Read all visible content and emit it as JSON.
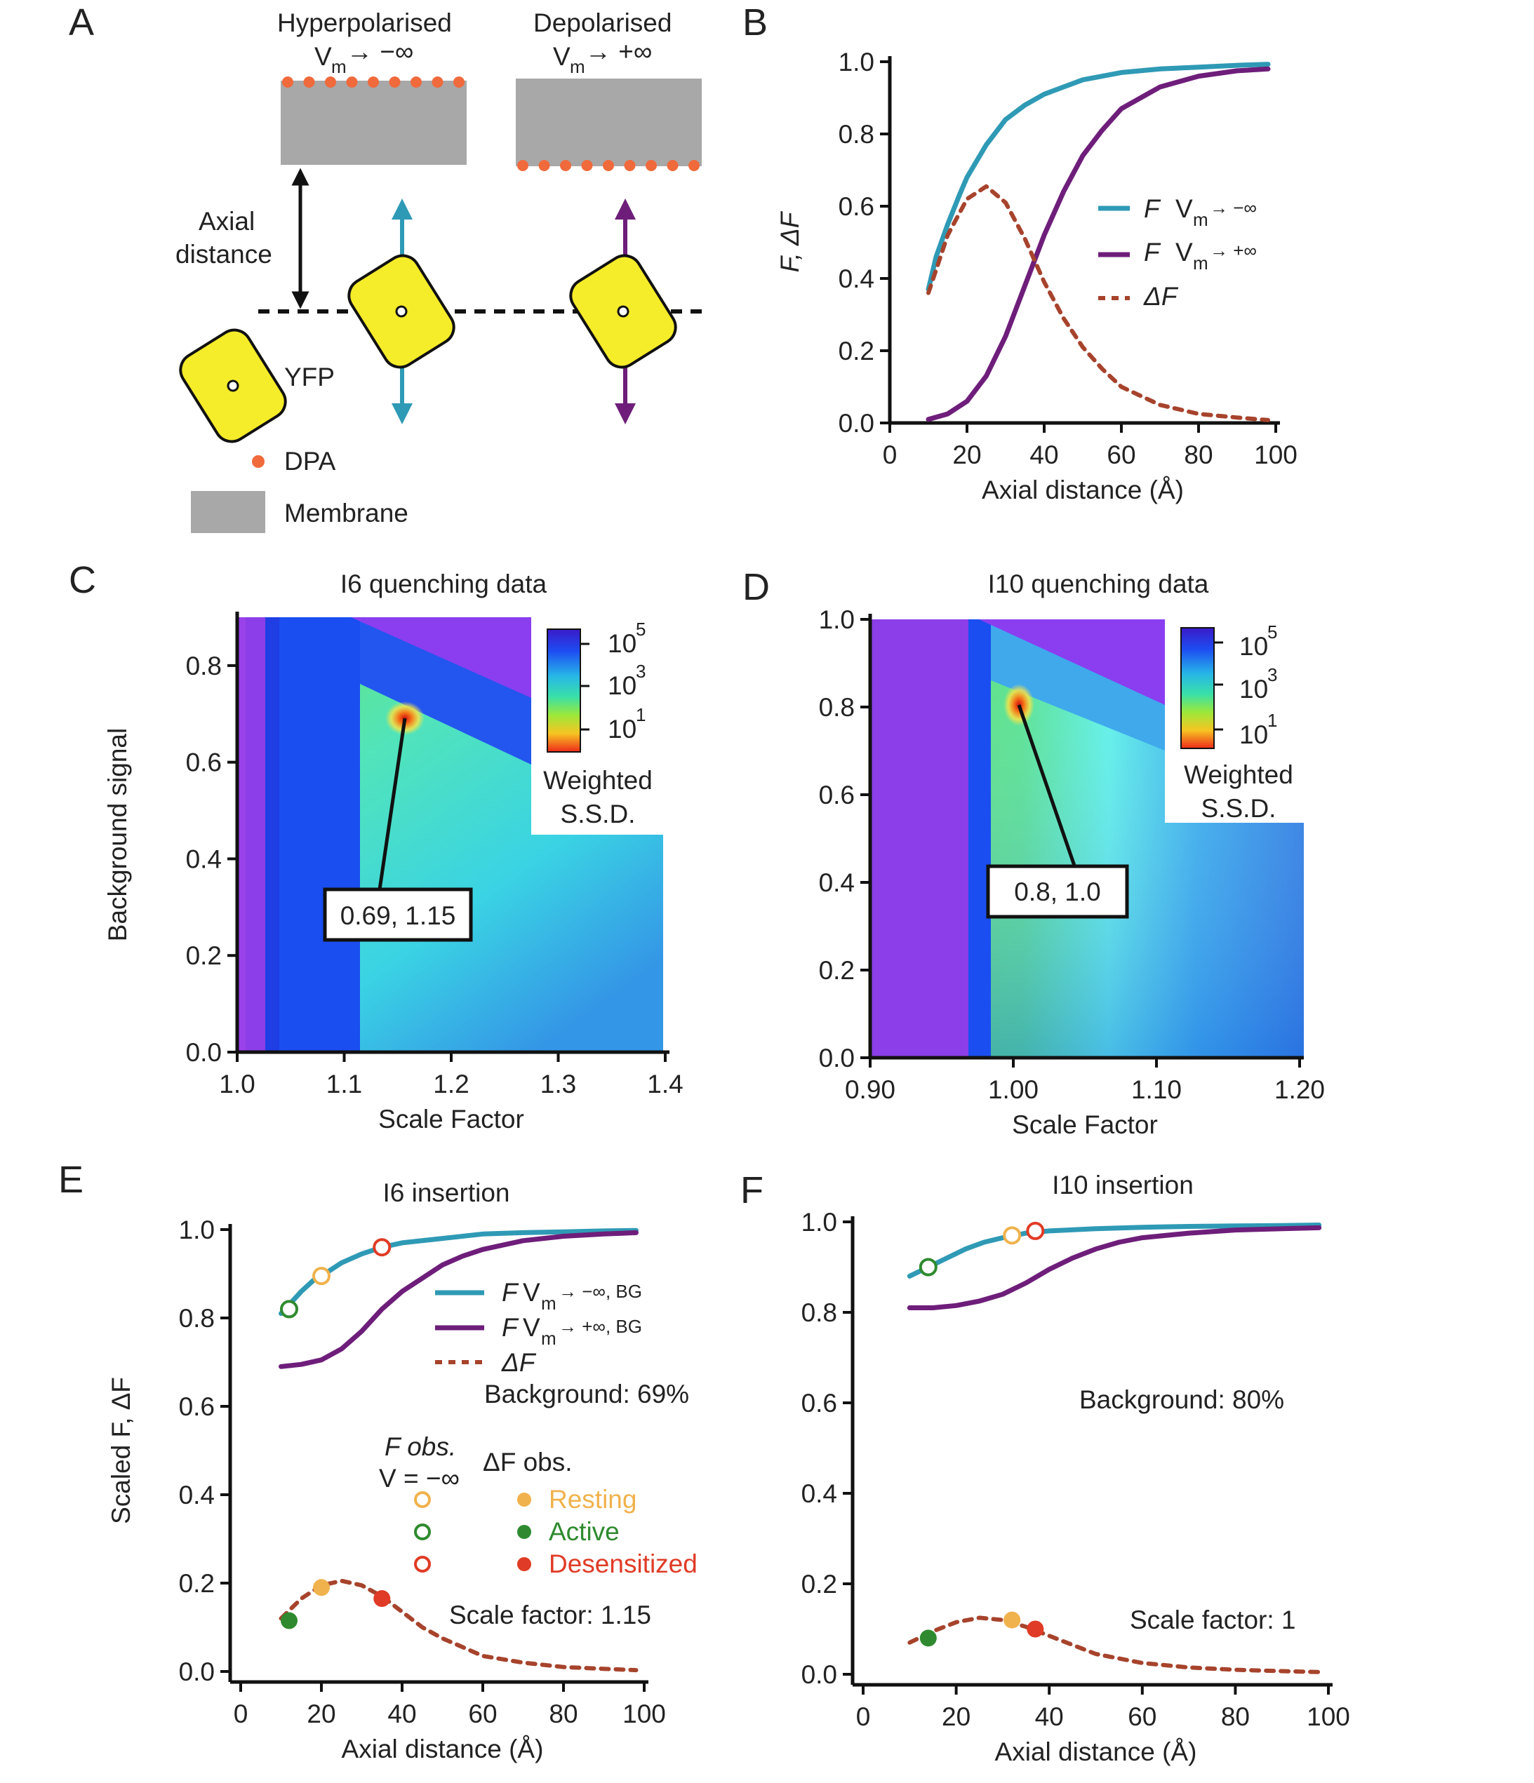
{
  "panels": {
    "A": "A",
    "B": "B",
    "C": "C",
    "D": "D",
    "E": "E",
    "F": "F"
  },
  "colors": {
    "teal": "#2f9ab5",
    "purple": "#6e1e7a",
    "dashed": "#a7432c",
    "resting": "#f0b24c",
    "active": "#2f8a2f",
    "desens": "#e03b26",
    "dpa": "#f06a3c",
    "membrane": "#a8a8a8",
    "yfp": "#f5ec2a"
  },
  "schematic": {
    "hyper_title": "Hyperpolarised",
    "hyper_vm_main": "V",
    "hyper_vm_sub": "m",
    "hyper_vm_tail": "→ −∞",
    "depol_title": "Depolarised",
    "depol_vm_main": "V",
    "depol_vm_sub": "m",
    "depol_vm_tail": "→ +∞",
    "axial_line1": "Axial",
    "axial_line2": "distance",
    "yfp_label": "YFP",
    "dpa_label": "DPA",
    "membrane_label": "Membrane"
  },
  "chart_data": [
    {
      "id": "B",
      "type": "line",
      "title": "",
      "xlabel": "Axial distance (Å)",
      "ylabel": "F, ΔF",
      "xlim": [
        0,
        100
      ],
      "ylim": [
        0,
        1.0
      ],
      "xticks": [
        "0",
        "20",
        "40",
        "60",
        "80",
        "100"
      ],
      "yticks": [
        "0.0",
        "0.2",
        "0.4",
        "0.6",
        "0.8",
        "1.0"
      ],
      "legend": {
        "teal_main": "F",
        "teal_vm": "V",
        "teal_sub": "m",
        "teal_tail": "→ −∞",
        "purple_main": "F",
        "purple_vm": "V",
        "purple_sub": "m",
        "purple_tail": "→ +∞",
        "dashed": "ΔF"
      },
      "series": [
        {
          "name": "F Vm→−∞",
          "x": [
            10,
            12,
            15,
            18,
            20,
            25,
            30,
            35,
            40,
            45,
            50,
            60,
            70,
            80,
            90,
            98
          ],
          "y": [
            0.37,
            0.46,
            0.55,
            0.63,
            0.68,
            0.77,
            0.84,
            0.88,
            0.91,
            0.93,
            0.95,
            0.97,
            0.98,
            0.985,
            0.99,
            0.993
          ]
        },
        {
          "name": "F Vm→+∞",
          "x": [
            10,
            15,
            20,
            25,
            30,
            35,
            40,
            45,
            50,
            55,
            60,
            70,
            80,
            90,
            98
          ],
          "y": [
            0.01,
            0.025,
            0.06,
            0.13,
            0.24,
            0.38,
            0.52,
            0.64,
            0.74,
            0.81,
            0.87,
            0.93,
            0.96,
            0.975,
            0.98
          ]
        },
        {
          "name": "ΔF",
          "x": [
            10,
            15,
            20,
            25,
            30,
            35,
            40,
            45,
            50,
            55,
            60,
            70,
            80,
            90,
            98
          ],
          "y": [
            0.36,
            0.52,
            0.62,
            0.655,
            0.61,
            0.51,
            0.39,
            0.29,
            0.21,
            0.15,
            0.1,
            0.05,
            0.025,
            0.015,
            0.008
          ]
        }
      ]
    },
    {
      "id": "C",
      "type": "heatmap",
      "title": "I6 quenching data",
      "xlabel": "Scale Factor",
      "ylabel": "Background signal",
      "xlim": [
        1.0,
        1.4
      ],
      "ylim": [
        0.0,
        0.9
      ],
      "xticks": [
        "1.0",
        "1.1",
        "1.2",
        "1.3",
        "1.4"
      ],
      "yticks": [
        "0.0",
        "0.2",
        "0.4",
        "0.6",
        "0.8"
      ],
      "colorbar": {
        "labels": [
          "10",
          "10",
          "10"
        ],
        "exponents": [
          "5",
          "3",
          "1"
        ],
        "title_line1": "Weighted",
        "title_line2": "S.S.D."
      },
      "minimum": {
        "x": 1.15,
        "y": 0.69
      },
      "annotation": "0.69, 1.15"
    },
    {
      "id": "D",
      "type": "heatmap",
      "title": "I10 quenching data",
      "xlabel": "Scale Factor",
      "ylabel": "",
      "xlim": [
        0.9,
        1.2
      ],
      "ylim": [
        0.0,
        1.0
      ],
      "xticks": [
        "0.90",
        "1.00",
        "1.10",
        "1.20"
      ],
      "yticks": [
        "0.0",
        "0.2",
        "0.4",
        "0.6",
        "0.8",
        "1.0"
      ],
      "colorbar": {
        "labels": [
          "10",
          "10",
          "10"
        ],
        "exponents": [
          "5",
          "3",
          "1"
        ],
        "title_line1": "Weighted",
        "title_line2": "S.S.D."
      },
      "minimum": {
        "x": 1.0,
        "y": 0.8
      },
      "annotation": "0.8, 1.0"
    },
    {
      "id": "E",
      "type": "line",
      "title": "I6 insertion",
      "xlabel": "Axial distance (Å)",
      "ylabel": "Scaled F,  ΔF",
      "xlim": [
        0,
        100
      ],
      "ylim": [
        0,
        1.0
      ],
      "xticks": [
        "0",
        "20",
        "40",
        "60",
        "80",
        "100"
      ],
      "yticks": [
        "0.0",
        "0.2",
        "0.4",
        "0.6",
        "0.8",
        "1.0"
      ],
      "legend": {
        "teal_main": "F",
        "teal_vm": "V",
        "teal_sub": "m",
        "teal_tail": "→ −∞, BG",
        "purple_main": "F",
        "purple_vm": "V",
        "purple_sub": "m",
        "purple_tail": "→ +∞, BG",
        "dashed": "ΔF"
      },
      "background_note": "Background: 69%",
      "scale_note": "Scale factor: 1.15",
      "obs_legend": {
        "f_obs_line1": "F obs.",
        "f_obs_line2": "V = −∞",
        "df_obs": "ΔF obs.",
        "resting": "Resting",
        "active": "Active",
        "desensitized": "Desensitized"
      },
      "series": [
        {
          "name": "F Vm→−∞, BG",
          "x": [
            10,
            12,
            15,
            18,
            20,
            25,
            30,
            35,
            40,
            50,
            60,
            70,
            80,
            90,
            98
          ],
          "y": [
            0.81,
            0.83,
            0.86,
            0.885,
            0.895,
            0.925,
            0.945,
            0.96,
            0.97,
            0.98,
            0.99,
            0.993,
            0.995,
            0.997,
            0.998
          ]
        },
        {
          "name": "F Vm→+∞, BG",
          "x": [
            10,
            15,
            20,
            25,
            30,
            35,
            40,
            45,
            50,
            55,
            60,
            70,
            80,
            90,
            98
          ],
          "y": [
            0.69,
            0.695,
            0.705,
            0.73,
            0.77,
            0.82,
            0.86,
            0.89,
            0.92,
            0.94,
            0.955,
            0.975,
            0.985,
            0.99,
            0.993
          ]
        },
        {
          "name": "ΔF",
          "x": [
            10,
            15,
            20,
            25,
            30,
            35,
            40,
            45,
            50,
            55,
            60,
            70,
            80,
            90,
            98
          ],
          "y": [
            0.12,
            0.165,
            0.195,
            0.205,
            0.195,
            0.17,
            0.135,
            0.1,
            0.075,
            0.055,
            0.035,
            0.02,
            0.01,
            0.006,
            0.003
          ]
        }
      ],
      "points": [
        {
          "state": "Active",
          "kind": "F",
          "x": 12,
          "y": 0.82
        },
        {
          "state": "Resting",
          "kind": "F",
          "x": 20,
          "y": 0.895
        },
        {
          "state": "Desensitized",
          "kind": "F",
          "x": 35,
          "y": 0.96
        },
        {
          "state": "Active",
          "kind": "dF",
          "x": 12,
          "y": 0.115
        },
        {
          "state": "Resting",
          "kind": "dF",
          "x": 20,
          "y": 0.19
        },
        {
          "state": "Desensitized",
          "kind": "dF",
          "x": 35,
          "y": 0.165
        }
      ]
    },
    {
      "id": "F",
      "type": "line",
      "title": "I10 insertion",
      "xlabel": "Axial distance (Å)",
      "ylabel": "",
      "xlim": [
        0,
        100
      ],
      "ylim": [
        0,
        1.0
      ],
      "xticks": [
        "0",
        "20",
        "40",
        "60",
        "80",
        "100"
      ],
      "yticks": [
        "0.0",
        "0.2",
        "0.4",
        "0.6",
        "0.8",
        "1.0"
      ],
      "background_note": "Background: 80%",
      "scale_note": "Scale factor: 1",
      "series": [
        {
          "name": "F Vm→−∞, BG",
          "x": [
            10,
            14,
            18,
            22,
            26,
            30,
            35,
            40,
            50,
            60,
            70,
            80,
            90,
            98
          ],
          "y": [
            0.88,
            0.9,
            0.92,
            0.94,
            0.955,
            0.965,
            0.975,
            0.98,
            0.985,
            0.988,
            0.99,
            0.991,
            0.992,
            0.993
          ]
        },
        {
          "name": "F Vm→+∞, BG",
          "x": [
            10,
            15,
            20,
            25,
            30,
            35,
            40,
            45,
            50,
            55,
            60,
            70,
            80,
            90,
            98
          ],
          "y": [
            0.81,
            0.81,
            0.815,
            0.825,
            0.84,
            0.865,
            0.895,
            0.92,
            0.94,
            0.955,
            0.965,
            0.975,
            0.982,
            0.985,
            0.987
          ]
        },
        {
          "name": "ΔF",
          "x": [
            10,
            15,
            20,
            25,
            30,
            35,
            40,
            45,
            50,
            60,
            70,
            80,
            90,
            98
          ],
          "y": [
            0.07,
            0.095,
            0.115,
            0.125,
            0.12,
            0.105,
            0.085,
            0.065,
            0.045,
            0.025,
            0.015,
            0.01,
            0.007,
            0.005
          ]
        }
      ],
      "points": [
        {
          "state": "Active",
          "kind": "F",
          "x": 14,
          "y": 0.9
        },
        {
          "state": "Resting",
          "kind": "F",
          "x": 32,
          "y": 0.97
        },
        {
          "state": "Desensitized",
          "kind": "F",
          "x": 37,
          "y": 0.98
        },
        {
          "state": "Active",
          "kind": "dF",
          "x": 14,
          "y": 0.08
        },
        {
          "state": "Resting",
          "kind": "dF",
          "x": 32,
          "y": 0.12
        },
        {
          "state": "Desensitized",
          "kind": "dF",
          "x": 37,
          "y": 0.1
        }
      ]
    }
  ]
}
